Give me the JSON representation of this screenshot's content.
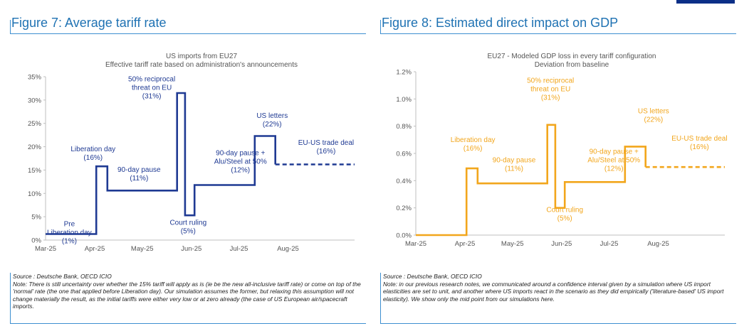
{
  "charts": [
    {
      "figure_title": "Figure 7: Average tariff rate",
      "source": "Source : Deutsche Bank, OECD ICIO",
      "note": "Note: There is still uncertainty over whether the 15% tariff will apply as is (ie be the new all-inclusive tariff rate) or come on top of the 'normal' rate (the one that applied before Liberation day). Our simulation assumes the former, but relaxing this assumption will not change materially the result, as the initial tariffs were either very low or at zero already (the case of US European air/spacecraft imports.",
      "color": "#1f3a93"
    },
    {
      "figure_title": "Figure 8: Estimated direct impact on GDP",
      "source": "Source : Deutsche Bank, OECD ICIO",
      "note": "Note: in our previous research notes, we communicated around a confidence interval given by a simulation where US import elasticities are set to unit, and another where US imports react in the scenario as they did empirically ('literature-based' US import elasticity). We show only the mid point from our simulations here.",
      "color": "#f2a61c"
    }
  ],
  "chart_data": [
    {
      "type": "line",
      "title": "US imports from EU27",
      "subtitle": "Effective tariff rate based on administration's announcements",
      "x_ticks": [
        "Mar-25",
        "Apr-25",
        "May-25",
        "Jun-25",
        "Jul-25",
        "Aug-25"
      ],
      "xlim": [
        "2025-03-01",
        "2025-09-12"
      ],
      "ylim": [
        0,
        35
      ],
      "y_ticks": [
        0,
        5,
        10,
        15,
        20,
        25,
        30,
        35
      ],
      "y_tick_labels": [
        "0%",
        "5%",
        "10%",
        "15%",
        "20%",
        "25%",
        "30%",
        "35%"
      ],
      "grid": false,
      "series": [
        {
          "style": "solid",
          "points": [
            [
              "2025-03-01",
              1.3
            ],
            [
              "2025-04-02",
              1.3
            ],
            [
              "2025-04-02",
              15.8
            ],
            [
              "2025-04-09",
              15.8
            ],
            [
              "2025-04-09",
              10.6
            ],
            [
              "2025-05-23",
              10.6
            ],
            [
              "2025-05-23",
              31.5
            ],
            [
              "2025-05-28",
              31.5
            ],
            [
              "2025-05-28",
              5.3
            ],
            [
              "2025-06-03",
              5.3
            ],
            [
              "2025-06-03",
              11.8
            ],
            [
              "2025-07-11",
              11.8
            ],
            [
              "2025-07-11",
              22.3
            ],
            [
              "2025-07-24",
              22.3
            ],
            [
              "2025-07-24",
              16.2
            ]
          ]
        },
        {
          "style": "dashed",
          "points": [
            [
              "2025-07-24",
              16.2
            ],
            [
              "2025-09-12",
              16.2
            ]
          ]
        }
      ],
      "annotations": [
        {
          "lines": [
            "Pre",
            "Liberation day",
            "(1%)"
          ],
          "x": "2025-03-16",
          "y": 3.0
        },
        {
          "lines": [
            "Liberation day",
            "(16%)"
          ],
          "x": "2025-03-31",
          "y": 19.0
        },
        {
          "lines": [
            "90-day pause",
            "(11%)"
          ],
          "x": "2025-04-29",
          "y": 14.6
        },
        {
          "lines": [
            "50% reciprocal",
            "threat on EU",
            "(31%)"
          ],
          "x": "2025-05-07",
          "y": 34.0
        },
        {
          "lines": [
            "Court ruling",
            "(5%)"
          ],
          "x": "2025-05-30",
          "y": 3.3
        },
        {
          "lines": [
            "90-day pause +",
            "Alu/Steel at 50%",
            "(12%)"
          ],
          "x": "2025-07-02",
          "y": 18.2
        },
        {
          "lines": [
            "US letters",
            "(22%)"
          ],
          "x": "2025-07-22",
          "y": 26.2
        },
        {
          "lines": [
            "EU-US trade deal",
            "(16%)"
          ],
          "x": "2025-08-25",
          "y": 20.4
        }
      ]
    },
    {
      "type": "line",
      "title": "EU27 - Modeled GDP loss in every tariff configuration",
      "subtitle": "Deviation from baseline",
      "x_ticks": [
        "Mar-25",
        "Apr-25",
        "May-25",
        "Jun-25",
        "Jul-25",
        "Aug-25"
      ],
      "xlim": [
        "2025-03-01",
        "2025-09-12"
      ],
      "ylim": [
        0,
        1.2
      ],
      "y_ticks": [
        0,
        0.2,
        0.4,
        0.6,
        0.8,
        1.0,
        1.2
      ],
      "y_tick_labels": [
        "0.0%",
        "0.2%",
        "0.4%",
        "0.6%",
        "0.8%",
        "1.0%",
        "1.2%"
      ],
      "grid": false,
      "series": [
        {
          "style": "solid",
          "points": [
            [
              "2025-03-01",
              0
            ],
            [
              "2025-04-02",
              0
            ],
            [
              "2025-04-02",
              0.49
            ],
            [
              "2025-04-09",
              0.49
            ],
            [
              "2025-04-09",
              0.38
            ],
            [
              "2025-05-23",
              0.38
            ],
            [
              "2025-05-23",
              0.81
            ],
            [
              "2025-05-28",
              0.81
            ],
            [
              "2025-05-28",
              0.2
            ],
            [
              "2025-06-03",
              0.2
            ],
            [
              "2025-06-03",
              0.39
            ],
            [
              "2025-07-11",
              0.39
            ],
            [
              "2025-07-11",
              0.65
            ],
            [
              "2025-07-24",
              0.65
            ],
            [
              "2025-07-24",
              0.5
            ]
          ]
        },
        {
          "style": "dashed",
          "points": [
            [
              "2025-07-24",
              0.5
            ],
            [
              "2025-09-12",
              0.5
            ]
          ]
        }
      ],
      "annotations": [
        {
          "lines": [
            "Liberation day",
            "(16%)"
          ],
          "x": "2025-04-06",
          "y": 0.684
        },
        {
          "lines": [
            "90-day pause",
            "(11%)"
          ],
          "x": "2025-05-02",
          "y": 0.534
        },
        {
          "lines": [
            "50% reciprocal",
            "threat on EU",
            "(31%)"
          ],
          "x": "2025-05-25",
          "y": 1.12
        },
        {
          "lines": [
            "Court ruling",
            "(5%)"
          ],
          "x": "2025-06-03",
          "y": 0.17
        },
        {
          "lines": [
            "90-day pause +",
            "Alu/Steel at 50%",
            "(12%)"
          ],
          "x": "2025-07-04",
          "y": 0.598
        },
        {
          "lines": [
            "US letters",
            "(22%)"
          ],
          "x": "2025-07-29",
          "y": 0.895
        },
        {
          "lines": [
            "EU-US trade deal",
            "(16%)"
          ],
          "x": "2025-08-27",
          "y": 0.694
        }
      ]
    }
  ]
}
